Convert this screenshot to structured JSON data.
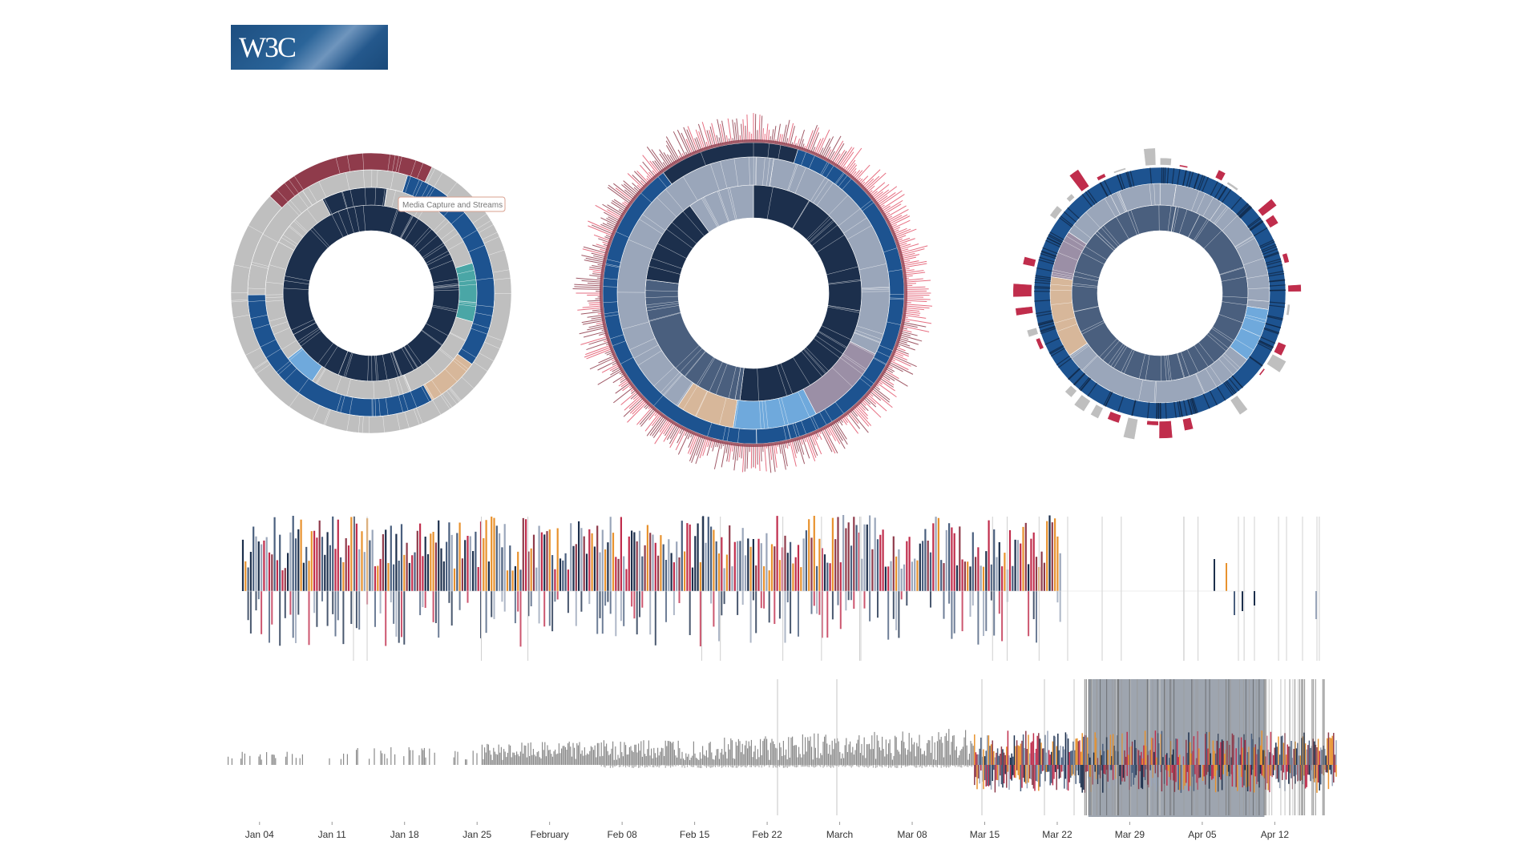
{
  "logo": {
    "text": "W3C"
  },
  "tooltip": {
    "text": "Media Capture and Streams"
  },
  "colors": {
    "navy": "#1c2f4c",
    "blue": "#1d5390",
    "slate": "#4a5f7e",
    "light_blue": "#6fa9dc",
    "teal": "#4aa6a6",
    "tan": "#d7b79a",
    "gray": "#bfbfbf",
    "pale_slate": "#9aa6ba",
    "mauve": "#9b8fa6",
    "red": "#e2546a",
    "crimson": "#c02d4c",
    "orange": "#e8922e",
    "dark_red": "#8f3b4b"
  },
  "chart_data": [
    {
      "type": "sunburst",
      "name": "left",
      "rings": [
        {
          "level": 1,
          "segments": [
            {
              "color": "navy",
              "share": 1.0
            }
          ]
        },
        {
          "level": 2,
          "segments": [
            {
              "color": "gray",
              "share": 0.18
            },
            {
              "color": "teal",
              "share": 0.09
            },
            {
              "color": "gray",
              "share": 0.3
            },
            {
              "color": "light_blue",
              "share": 0.05
            },
            {
              "color": "gray",
              "share": 0.28
            },
            {
              "color": "navy",
              "share": 0.1
            }
          ]
        },
        {
          "level": 3,
          "segments": [
            {
              "color": "blue",
              "share": 0.3
            },
            {
              "color": "tan",
              "share": 0.07
            },
            {
              "color": "blue",
              "share": 0.33
            },
            {
              "color": "gray",
              "share": 0.3
            }
          ]
        },
        {
          "level": 4,
          "segments": [
            {
              "color": "gray",
              "share": 0.8
            },
            {
              "color": "dark_red",
              "share": 0.2
            }
          ]
        }
      ]
    },
    {
      "type": "sunburst",
      "name": "center",
      "rings": [
        {
          "level": 1,
          "segments": [
            {
              "color": "navy",
              "share": 0.52
            },
            {
              "color": "slate",
              "share": 0.25
            },
            {
              "color": "navy",
              "share": 0.13
            },
            {
              "color": "pale_slate",
              "share": 0.1
            }
          ]
        },
        {
          "level": 2,
          "segments": [
            {
              "color": "pale_slate",
              "share": 0.3
            },
            {
              "color": "mauve",
              "share": 0.1
            },
            {
              "color": "light_blue",
              "share": 0.1
            },
            {
              "color": "tan",
              "share": 0.07
            },
            {
              "color": "pale_slate",
              "share": 0.43
            }
          ]
        },
        {
          "level": 3,
          "segments": [
            {
              "color": "blue",
              "share": 0.85
            },
            {
              "color": "navy",
              "share": 0.15
            }
          ]
        },
        {
          "level": 4,
          "segments": [
            {
              "color": "red",
              "share": 0.3
            },
            {
              "color": "dark_red",
              "share": 0.7
            }
          ]
        }
      ]
    },
    {
      "type": "sunburst",
      "name": "right",
      "rings": [
        {
          "level": 1,
          "segments": [
            {
              "color": "slate",
              "share": 1.0
            }
          ]
        },
        {
          "level": 2,
          "segments": [
            {
              "color": "pale_slate",
              "share": 0.25
            },
            {
              "color": "light_blue",
              "share": 0.08
            },
            {
              "color": "pale_slate",
              "share": 0.3
            },
            {
              "color": "tan",
              "share": 0.12
            },
            {
              "color": "mauve",
              "share": 0.07
            },
            {
              "color": "pale_slate",
              "share": 0.18
            }
          ]
        },
        {
          "level": 3,
          "segments": [
            {
              "color": "blue",
              "share": 1.0
            }
          ]
        },
        {
          "level": 4,
          "segments": [
            {
              "color": "crimson",
              "share": 0.6
            },
            {
              "color": "gray",
              "share": 0.4
            }
          ]
        }
      ]
    },
    {
      "type": "bar",
      "name": "upper-timeline",
      "orientation": "diverging",
      "x_start": "2015-01-01",
      "x_end": "2015-04-17",
      "up_colors": [
        "orange",
        "crimson",
        "dark_red",
        "slate",
        "pale_slate",
        "navy"
      ],
      "down_colors": [
        "slate",
        "pale_slate",
        "navy",
        "crimson"
      ]
    },
    {
      "type": "bar",
      "name": "lower-timeline",
      "orientation": "diverging",
      "x_start": "2015-01-01",
      "x_end": "2015-04-17",
      "x_ticks": [
        "Jan 04",
        "Jan 11",
        "Jan 18",
        "Jan 25",
        "February",
        "Feb 08",
        "Feb 15",
        "Feb 22",
        "March",
        "Mar 08",
        "Mar 15",
        "Mar 22",
        "Mar 29",
        "Apr 05",
        "Apr 12"
      ],
      "brush_selection": [
        "Mar 25",
        "Apr 11"
      ],
      "gray_until": "Mar 14"
    }
  ]
}
